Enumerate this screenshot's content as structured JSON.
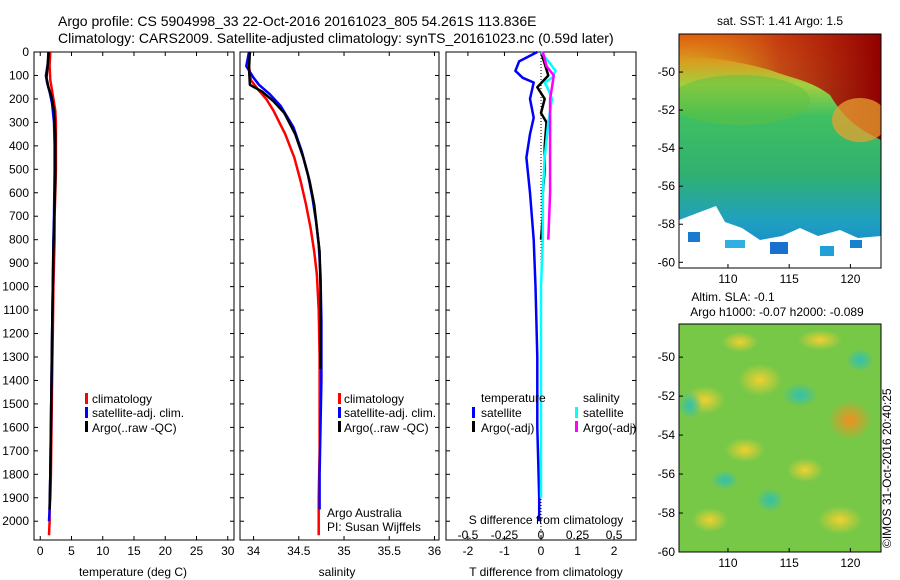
{
  "figure": {
    "title_line1": "Argo profile: CS 5904998_33 22-Oct-2016 20161023_805 54.261S 113.836E",
    "title_line2": "Climatology: CARS2009. Satellite-adjusted climatology: synTS_20161023.nc (0.59d later)",
    "credit": "Argo Australia",
    "pi": "PI: Susan Wijffels",
    "stamp": "©IMOS 31-Oct-2016 20:40:25"
  },
  "colors": {
    "climatology": "#ff0000",
    "satellite": "#0000ff",
    "argo": "#000000",
    "sal_satellite": "#00ffff",
    "sal_argo": "#ff00ff"
  },
  "chart_data": [
    {
      "type": "line",
      "xlabel": "temperature (deg C)",
      "ylabel": "",
      "xlim": [
        -1,
        31
      ],
      "ylim": [
        2080,
        0
      ],
      "xticks": [
        0,
        5,
        10,
        15,
        20,
        25,
        30
      ],
      "yticks": [
        0,
        100,
        200,
        300,
        400,
        500,
        600,
        700,
        800,
        900,
        1000,
        1100,
        1200,
        1300,
        1400,
        1500,
        1600,
        1700,
        1800,
        1900,
        2000
      ],
      "legend": [
        "climatology",
        "satellite-adj. clim.",
        "Argo(..raw -QC)"
      ],
      "series": [
        {
          "name": "climatology",
          "color": "#ff0000",
          "x": [
            1.6,
            1.5,
            1.6,
            1.8,
            2.1,
            2.4,
            2.5,
            2.5,
            2.5,
            2.4,
            2.3,
            2.3,
            2.2,
            2.1,
            2.0,
            1.9,
            1.8,
            1.7,
            1.6,
            1.5,
            1.5,
            1.4
          ],
          "y": [
            0,
            60,
            120,
            150,
            200,
            250,
            300,
            400,
            500,
            600,
            700,
            800,
            900,
            1000,
            1200,
            1400,
            1600,
            1800,
            1900,
            1950,
            2000,
            2060
          ]
        },
        {
          "name": "satellite-adj. clim.",
          "color": "#0000ff",
          "x": [
            1.4,
            1.2,
            0.9,
            1.1,
            1.5,
            1.9,
            2.2,
            2.3,
            2.3,
            2.2,
            2.1,
            2.0,
            1.9,
            1.8,
            1.7,
            1.6,
            1.5,
            1.4
          ],
          "y": [
            0,
            50,
            100,
            130,
            170,
            220,
            300,
            400,
            500,
            700,
            800,
            1000,
            1200,
            1400,
            1600,
            1800,
            1950,
            2000
          ]
        },
        {
          "name": "Argo(..raw -QC)",
          "color": "#000000",
          "x": [
            1.3,
            1.2,
            1.0,
            1.3,
            1.8,
            2.2,
            2.4,
            2.4,
            2.4,
            2.3,
            2.2,
            2.1,
            2.0,
            1.9,
            1.8,
            1.7,
            1.6,
            1.5
          ],
          "y": [
            0,
            50,
            110,
            150,
            190,
            250,
            350,
            450,
            550,
            650,
            750,
            850,
            1000,
            1200,
            1400,
            1600,
            1800,
            1950
          ]
        }
      ]
    },
    {
      "type": "line",
      "xlabel": "salinity",
      "ylabel": "",
      "xlim": [
        33.85,
        36.05
      ],
      "ylim": [
        2080,
        0
      ],
      "xticks": [
        34,
        34.5,
        35,
        35.5,
        36
      ],
      "yticks": [],
      "legend": [
        "climatology",
        "satellite-adj. clim.",
        "Argo(..raw -QC)"
      ],
      "series": [
        {
          "name": "climatology",
          "color": "#ff0000",
          "x": [
            33.95,
            33.95,
            33.97,
            34.05,
            34.14,
            34.22,
            34.35,
            34.45,
            34.52,
            34.58,
            34.63,
            34.67,
            34.7,
            34.72,
            34.73,
            34.73,
            34.73,
            34.72,
            34.72,
            34.72
          ],
          "y": [
            0,
            60,
            120,
            160,
            200,
            250,
            350,
            450,
            550,
            650,
            750,
            850,
            950,
            1100,
            1300,
            1500,
            1700,
            1900,
            2000,
            2060
          ]
        },
        {
          "name": "satellite-adj. clim.",
          "color": "#0000ff",
          "x": [
            33.95,
            33.92,
            34.0,
            34.06,
            34.18,
            34.3,
            34.44,
            34.53,
            34.6,
            34.65,
            34.69,
            34.72,
            34.74,
            34.75,
            34.75,
            34.74,
            34.73,
            34.73
          ],
          "y": [
            0,
            60,
            110,
            140,
            180,
            230,
            320,
            420,
            520,
            620,
            720,
            820,
            950,
            1150,
            1400,
            1600,
            1800,
            1950
          ]
        },
        {
          "name": "Argo(..raw -QC)",
          "color": "#000000",
          "x": [
            33.96,
            33.95,
            33.96,
            34.1,
            34.22,
            34.34,
            34.46,
            34.55,
            34.62,
            34.67,
            34.7,
            34.73,
            34.74,
            34.74,
            34.74
          ],
          "y": [
            0,
            70,
            140,
            170,
            210,
            260,
            350,
            450,
            550,
            650,
            750,
            850,
            1000,
            1200,
            1350
          ]
        }
      ]
    },
    {
      "type": "line",
      "xlabel": "T difference from climatology",
      "xlabel_top": "S difference from climatology",
      "ylabel": "",
      "xlim": [
        -2.6,
        2.6
      ],
      "ylim": [
        2080,
        0
      ],
      "xticks": [
        -2,
        -1,
        0,
        1,
        2
      ],
      "xticks_top": [
        -0.5,
        -0.25,
        0,
        0.25,
        0.5
      ],
      "yticks": [],
      "legend_title_left": "temperature",
      "legend_title_right": "salinity",
      "legend_left": [
        "satellite",
        "Argo(-adj)"
      ],
      "legend_right": [
        "satellite",
        "Argo(-adj)"
      ],
      "series": [
        {
          "name": "satellite",
          "color": "#0000ff",
          "x": [
            -0.1,
            -0.6,
            -0.7,
            -0.5,
            -0.2,
            -0.3,
            -0.2,
            -0.3,
            -0.4,
            -0.3,
            -0.2,
            -0.15,
            -0.1,
            -0.1,
            -0.05,
            -0.05
          ],
          "y": [
            0,
            40,
            80,
            110,
            130,
            200,
            280,
            350,
            450,
            600,
            800,
            1000,
            1300,
            1600,
            1900,
            2000
          ]
        },
        {
          "name": "Argo(-adj)",
          "color": "#000000",
          "x": [
            0,
            0.1,
            0.2,
            -0.1,
            0.1,
            0.0,
            0.15,
            0.1,
            0.1,
            0.05,
            0.05,
            0.0
          ],
          "y": [
            0,
            50,
            100,
            150,
            200,
            260,
            300,
            400,
            500,
            600,
            700,
            800
          ]
        },
        {
          "name": "satellite",
          "color": "#00ffff",
          "x": [
            0.0,
            0.2,
            0.4,
            0.3,
            0.1,
            0.2,
            0.3,
            0.2,
            0.1,
            0.05,
            0.05,
            0.0,
            0.0,
            0.0
          ],
          "y": [
            0,
            40,
            80,
            110,
            130,
            160,
            200,
            300,
            450,
            600,
            800,
            1000,
            1300,
            1900
          ]
        },
        {
          "name": "Argo(-adj)",
          "color": "#ff00ff",
          "x": [
            0.05,
            0.15,
            0.35,
            0.3,
            0.25,
            0.25,
            0.25,
            0.2
          ],
          "y": [
            0,
            60,
            100,
            150,
            200,
            400,
            600,
            800
          ]
        }
      ]
    },
    {
      "type": "heatmap",
      "title": "sat. SST: 1.41  Argo: 1.5",
      "xlim": [
        106,
        122.5
      ],
      "ylim": [
        -60.3,
        -48
      ],
      "xticks": [
        110,
        115,
        120
      ],
      "yticks": [
        -50,
        -52,
        -54,
        -56,
        -58,
        -60
      ]
    },
    {
      "type": "heatmap",
      "title_line1": "Altim. SLA: -0.1",
      "title_line2": "Argo h1000: -0.07 h2000: -0.089",
      "xlim": [
        106,
        122.5
      ],
      "ylim": [
        -60,
        -48.3
      ],
      "xticks": [
        110,
        115,
        120
      ],
      "yticks": [
        -50,
        -52,
        -54,
        -56,
        -58,
        -60
      ]
    }
  ]
}
